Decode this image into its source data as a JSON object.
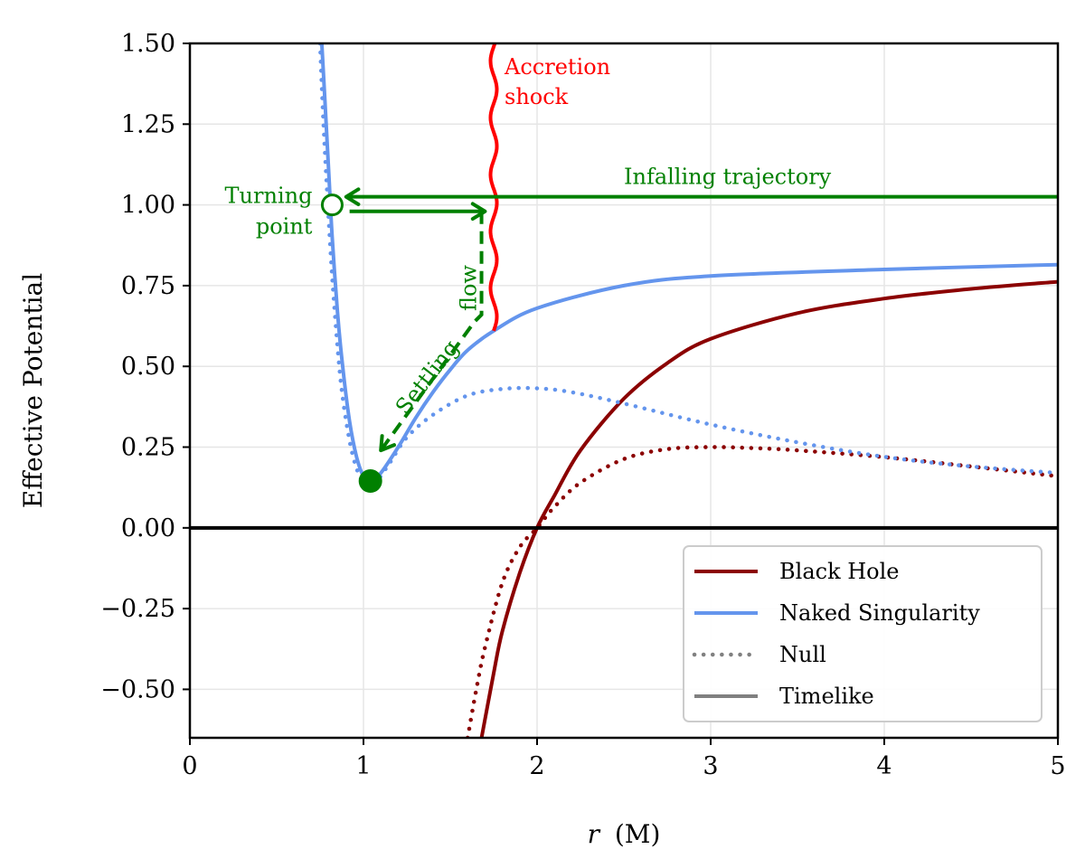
{
  "chart_data": {
    "type": "line",
    "title": "",
    "xlabel_var": "r",
    "xlabel_unit": "(M)",
    "ylabel": "Effective Potential",
    "xlim": [
      0,
      5
    ],
    "ylim": [
      -0.65,
      1.5
    ],
    "x_ticks": [
      {
        "value": 0,
        "label": "0"
      },
      {
        "value": 1,
        "label": "1"
      },
      {
        "value": 2,
        "label": "2"
      },
      {
        "value": 3,
        "label": "3"
      },
      {
        "value": 4,
        "label": "4"
      },
      {
        "value": 5,
        "label": "5"
      }
    ],
    "y_ticks": [
      {
        "value": 1.5,
        "label": "1.50"
      },
      {
        "value": 1.25,
        "label": "1.25"
      },
      {
        "value": 1.0,
        "label": "1.00"
      },
      {
        "value": 0.75,
        "label": "0.75"
      },
      {
        "value": 0.5,
        "label": "0.50"
      },
      {
        "value": 0.25,
        "label": "0.25"
      },
      {
        "value": 0.0,
        "label": "0.00"
      },
      {
        "value": -0.25,
        "label": "−0.25"
      },
      {
        "value": -0.5,
        "label": "−0.50"
      }
    ],
    "grid": true,
    "legend_position": "bottom-right",
    "colors": {
      "black_hole": "#8b0000",
      "naked_singularity": "#6495ed",
      "annotation": "#008000",
      "shock": "#ff0000",
      "legend_style": "#808080"
    },
    "series": [
      {
        "name": "Black Hole Timelike",
        "style": "solid",
        "color": "#8b0000",
        "x": [
          1.68,
          1.75,
          1.8,
          1.9,
          2.0,
          2.1,
          2.25,
          2.5,
          2.75,
          3.0,
          3.5,
          4.0,
          4.5,
          5.0
        ],
        "y": [
          -0.65,
          -0.45,
          -0.32,
          -0.14,
          0.0,
          0.1,
          0.24,
          0.4,
          0.51,
          0.585,
          0.665,
          0.71,
          0.74,
          0.762
        ]
      },
      {
        "name": "Black Hole Null",
        "style": "dotted",
        "color": "#8b0000",
        "x": [
          1.6,
          1.65,
          1.7,
          1.8,
          1.9,
          2.0,
          2.1,
          2.25,
          2.5,
          2.75,
          3.0,
          3.25,
          3.5,
          4.0,
          4.5,
          5.0
        ],
        "y": [
          -0.65,
          -0.5,
          -0.37,
          -0.17,
          -0.06,
          0.0,
          0.065,
          0.14,
          0.213,
          0.244,
          0.25,
          0.247,
          0.24,
          0.219,
          0.19,
          0.16
        ]
      },
      {
        "name": "Naked Singularity Timelike",
        "style": "solid",
        "color": "#6495ed",
        "x": [
          0.76,
          0.78,
          0.8,
          0.82,
          0.85,
          0.88,
          0.92,
          0.96,
          1.0,
          1.04,
          1.1,
          1.2,
          1.3,
          1.4,
          1.5,
          1.6,
          1.75,
          2.0,
          2.5,
          3.0,
          4.0,
          5.0
        ],
        "y": [
          1.5,
          1.3,
          1.1,
          0.9,
          0.67,
          0.5,
          0.33,
          0.22,
          0.16,
          0.145,
          0.17,
          0.25,
          0.34,
          0.42,
          0.49,
          0.55,
          0.61,
          0.68,
          0.75,
          0.78,
          0.8,
          0.815
        ]
      },
      {
        "name": "Naked Singularity Null",
        "style": "dotted",
        "color": "#6495ed",
        "x": [
          0.75,
          0.77,
          0.8,
          0.83,
          0.87,
          0.92,
          0.97,
          1.02,
          1.07,
          1.15,
          1.25,
          1.4,
          1.6,
          1.8,
          2.0,
          2.2,
          2.5,
          3.0,
          3.5,
          4.0,
          4.5,
          5.0
        ],
        "y": [
          1.5,
          1.25,
          0.95,
          0.7,
          0.45,
          0.27,
          0.17,
          0.13,
          0.14,
          0.2,
          0.28,
          0.35,
          0.41,
          0.43,
          0.432,
          0.42,
          0.385,
          0.32,
          0.265,
          0.22,
          0.19,
          0.17
        ]
      }
    ],
    "legend": [
      {
        "label": "Black Hole",
        "style": "solid",
        "color": "#8b0000"
      },
      {
        "label": "Naked Singularity",
        "style": "solid",
        "color": "#6495ed"
      },
      {
        "label": "Null",
        "style": "dotted",
        "color": "#808080"
      },
      {
        "label": "Timelike",
        "style": "solid",
        "color": "#808080"
      }
    ],
    "annotations": {
      "zero_line_y": 0.0,
      "shock": {
        "label_line1": "Accretion",
        "label_line2": "shock",
        "x": 1.75,
        "y_from": 0.61,
        "y_to": 1.5
      },
      "infall": {
        "label": "Infalling trajectory",
        "y": 1.025,
        "x_from": 5.0,
        "x_to": 0.9
      },
      "turning_point": {
        "label_line1": "Turning",
        "label_line2": "point",
        "x": 0.82,
        "y": 1.0
      },
      "bounce": {
        "y": 0.98,
        "x_from": 0.92,
        "x_to": 1.7
      },
      "settling": {
        "label_line1": "Settling",
        "label_line2": "flow",
        "x_top": 1.68,
        "y_top": 0.98,
        "x_corner": 1.68,
        "y_corner": 0.66,
        "x_end": 1.1,
        "y_end": 0.24
      },
      "minimum": {
        "x": 1.04,
        "y": 0.145
      }
    }
  }
}
